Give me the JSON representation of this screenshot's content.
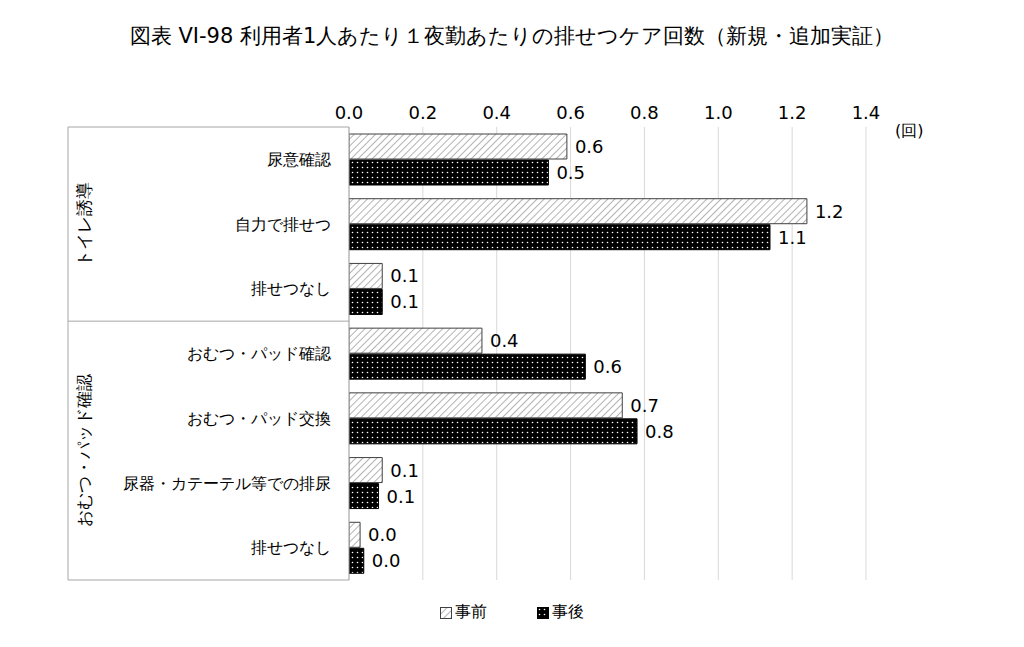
{
  "chart_data": {
    "type": "bar",
    "title": "図表 VI-98 利用者1人あたり１夜勤あたりの排せつケア回数（新規・追加実証）",
    "x_label": "(回)",
    "orientation": "horizontal",
    "categories": [
      "尿意確認",
      "自力で排せつ",
      "排せつなし",
      "おむつ・パッド確認",
      "おむつ・パッド交換",
      "尿器・カテーテル等での排尿",
      "排せつなし"
    ],
    "groups": [
      {
        "name": "トイレ誘導",
        "categories": 3
      },
      {
        "name": "おむつ・パッド確認",
        "categories": 4
      }
    ],
    "series": [
      {
        "name": "事前",
        "color": "#7f7f7f",
        "values": [
          0.59,
          1.24,
          0.09,
          0.36,
          0.74,
          0.09,
          0.03
        ],
        "value_labels": [
          "0.6",
          "1.2",
          "0.1",
          "0.4",
          "0.7",
          "0.1",
          "0.0"
        ]
      },
      {
        "name": "事後",
        "color": "#000000",
        "values": [
          0.54,
          1.14,
          0.09,
          0.64,
          0.78,
          0.08,
          0.04
        ],
        "value_labels": [
          "0.5",
          "1.1",
          "0.1",
          "0.6",
          "0.8",
          "0.1",
          "0.0"
        ]
      }
    ],
    "xlim": [
      0,
      1.4
    ],
    "xticks": [
      {
        "value": 0,
        "label": "0.0"
      },
      {
        "value": 0.2,
        "label": "0.2"
      },
      {
        "value": 0.4,
        "label": "0.4"
      },
      {
        "value": 0.6,
        "label": "0.6"
      },
      {
        "value": 0.8,
        "label": "0.8"
      },
      {
        "value": 1,
        "label": "1.0"
      },
      {
        "value": 1.2,
        "label": "1.2"
      },
      {
        "value": 1.4,
        "label": "1.4"
      }
    ],
    "grid": true,
    "legend": "bottom",
    "data_labels": true
  }
}
